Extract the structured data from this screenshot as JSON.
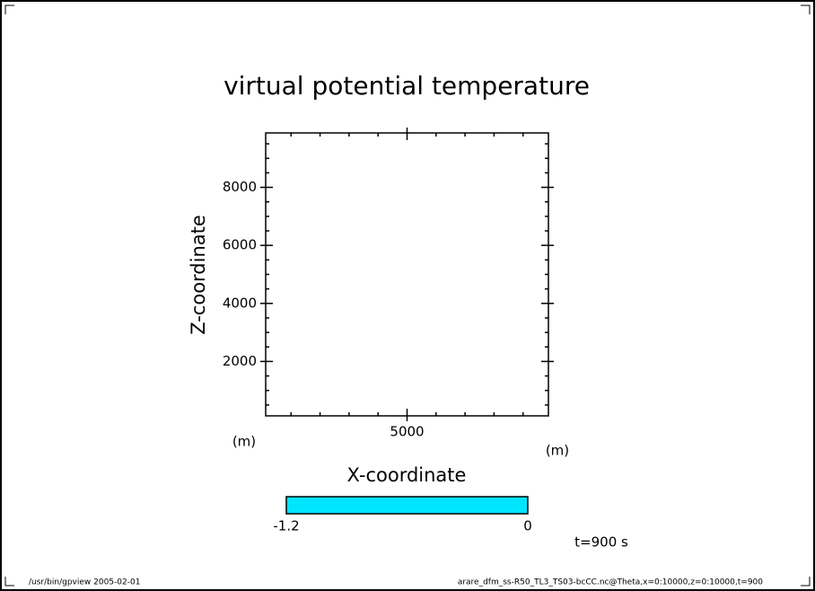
{
  "chart_data": {
    "type": "empty-plot",
    "title": "virtual potential temperature",
    "x_label": "X-coordinate",
    "y_label": "Z-coordinate",
    "x_unit": "(m)",
    "y_unit": "(m)",
    "xlim": [
      125,
      9875
    ],
    "ylim": [
      125,
      9875
    ],
    "xticks": [
      5000
    ],
    "yticks": [
      2000,
      4000,
      6000,
      8000
    ],
    "xminorticks": [
      1000,
      2000,
      3000,
      4000,
      6000,
      7000,
      8000,
      9000
    ],
    "yminorticks": [
      500,
      1000,
      1500,
      2500,
      3000,
      3500,
      4500,
      5000,
      5500,
      6500,
      7000,
      7500,
      8500,
      9000,
      9500
    ],
    "colorbar": {
      "levels": [
        -1.2,
        0
      ],
      "color": "#00e5ff"
    },
    "time_label": "t=900 s",
    "footer_left": "/usr/bin/gpview  2005-02-01",
    "footer_right": "arare_dfm_ss-R50_TL3_TS03-bcCC.nc@Theta,x=0:10000,z=0:10000,t=900"
  }
}
